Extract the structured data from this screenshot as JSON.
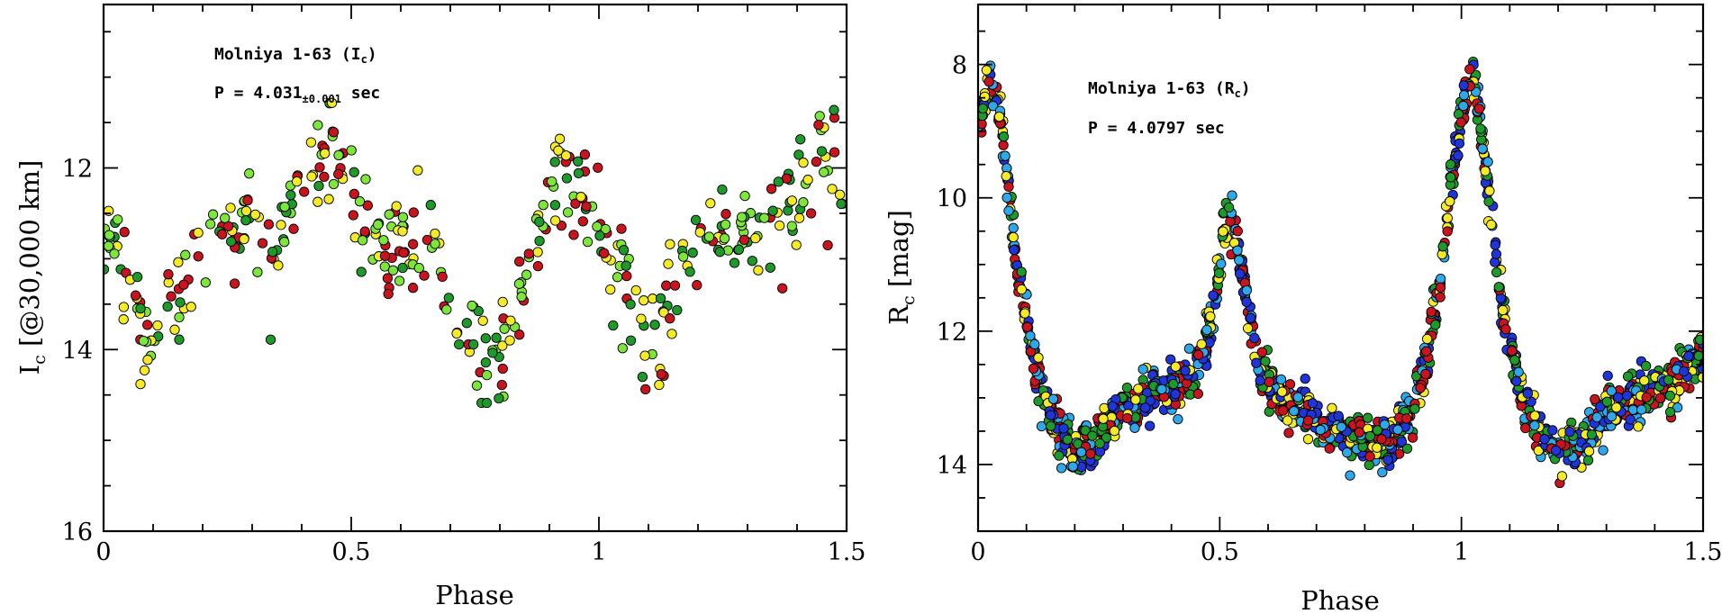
{
  "chart_data": [
    {
      "type": "scatter",
      "xlabel": "Phase",
      "ylabel_main": "I",
      "ylabel_sub": "c",
      "ylabel_rest": " [@30,000 km]",
      "xlim": [
        0,
        1.5
      ],
      "ylim": [
        16,
        10.2
      ],
      "y_inverted": true,
      "x_ticks": [
        0,
        0.5,
        1,
        1.5
      ],
      "x_tick_labels": [
        "0",
        "0.5",
        "1",
        "1.5"
      ],
      "y_ticks": [
        12,
        14,
        16
      ],
      "y_tick_labels": [
        "12",
        "14",
        "16"
      ],
      "annotation_line1_main": "Molniya 1-63 (I",
      "annotation_line1_sub": "c",
      "annotation_line1_end": ")",
      "annotation_line2_main": "P = 4.031",
      "annotation_line2_sub": "±0.001",
      "annotation_line2_end": " sec",
      "series_colors": [
        "#c8141e",
        "#1e9a2a",
        "#7ee63a",
        "#f5ea28"
      ],
      "anchors_x": [
        0.0,
        0.03,
        0.06,
        0.09,
        0.12,
        0.16,
        0.2,
        0.24,
        0.3,
        0.35,
        0.4,
        0.44,
        0.47,
        0.5,
        0.55,
        0.6,
        0.64,
        0.68,
        0.71,
        0.74,
        0.77,
        0.8,
        0.84,
        0.88,
        0.92,
        0.96,
        1.0,
        1.03,
        1.06,
        1.09,
        1.12,
        1.16,
        1.2,
        1.24,
        1.3,
        1.35,
        1.4,
        1.44,
        1.47,
        1.5
      ],
      "anchors_y": [
        12.6,
        13.0,
        13.3,
        13.9,
        13.8,
        13.3,
        12.9,
        12.6,
        12.7,
        12.8,
        12.3,
        11.8,
        11.8,
        12.2,
        12.8,
        13.0,
        12.6,
        13.1,
        13.6,
        13.9,
        14.2,
        14.1,
        13.3,
        12.5,
        12.1,
        12.1,
        12.6,
        13.0,
        13.3,
        13.9,
        13.8,
        13.3,
        12.9,
        12.6,
        12.7,
        12.8,
        12.3,
        11.8,
        11.8,
        12.2
      ],
      "n_points": 420,
      "scatter_sigma": 0.28
    },
    {
      "type": "scatter",
      "xlabel": "Phase",
      "ylabel_main": "R",
      "ylabel_sub": "c",
      "ylabel_rest": " [mag]",
      "xlim": [
        0,
        1.5
      ],
      "ylim": [
        15,
        7.1
      ],
      "y_inverted": true,
      "x_ticks": [
        0,
        0.5,
        1,
        1.5
      ],
      "x_tick_labels": [
        "0",
        "0.5",
        "1",
        "1.5"
      ],
      "y_ticks": [
        8,
        10,
        12,
        14
      ],
      "y_tick_labels": [
        "8",
        "10",
        "12",
        "14"
      ],
      "annotation_line1_main": "Molniya 1-63 (R",
      "annotation_line1_sub": "c",
      "annotation_line1_end": ")",
      "annotation_line2_main": "P = 4.0797 sec",
      "series_colors": [
        "#c8141e",
        "#1e9a2a",
        "#f5ea28",
        "#2035d8",
        "#2ea8e8"
      ],
      "anchors_x": [
        0.0,
        0.02,
        0.03,
        0.05,
        0.08,
        0.12,
        0.16,
        0.2,
        0.25,
        0.3,
        0.36,
        0.42,
        0.46,
        0.49,
        0.51,
        0.53,
        0.55,
        0.58,
        0.62,
        0.67,
        0.72,
        0.78,
        0.84,
        0.89,
        0.93,
        0.96,
        0.98,
        1.0,
        1.02,
        1.03,
        1.05,
        1.08,
        1.12,
        1.16,
        1.2,
        1.25,
        1.3,
        1.36,
        1.42,
        1.46,
        1.5
      ],
      "anchors_y": [
        9.0,
        8.3,
        8.2,
        9.0,
        11.0,
        12.6,
        13.4,
        13.8,
        13.6,
        13.2,
        13.0,
        12.8,
        12.5,
        11.6,
        10.4,
        10.4,
        11.3,
        12.5,
        13.0,
        13.2,
        13.4,
        13.6,
        13.7,
        13.3,
        12.4,
        11.0,
        9.7,
        8.7,
        8.2,
        8.3,
        9.5,
        11.5,
        12.9,
        13.5,
        13.8,
        13.6,
        13.2,
        13.0,
        12.8,
        12.6,
        12.3
      ],
      "n_points": 1600,
      "scatter_sigma": 0.18
    }
  ]
}
